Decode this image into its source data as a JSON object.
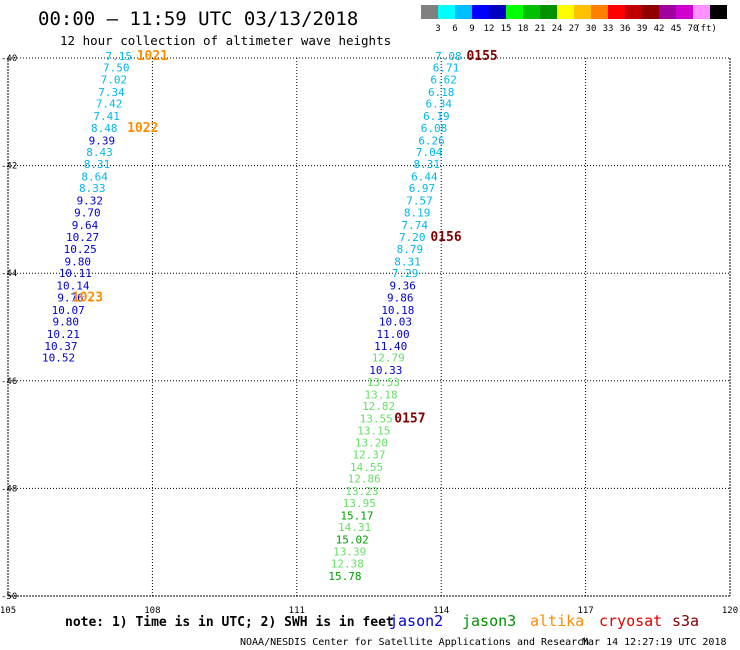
{
  "header": {
    "title": "00:00 – 11:59 UTC 03/13/2018",
    "subtitle": "12 hour collection of altimeter wave heights"
  },
  "colorbar": {
    "colors": [
      "#808080",
      "#00ffff",
      "#00bfff",
      "#0000ff",
      "#0000c0",
      "#00ff00",
      "#00c000",
      "#009000",
      "#ffff00",
      "#ffc000",
      "#ff8000",
      "#ff0000",
      "#c00000",
      "#900000",
      "#a000a0",
      "#d000d0",
      "#ff90ff",
      "#000000"
    ],
    "labels": [
      "3",
      "6",
      "9",
      "12",
      "15",
      "18",
      "21",
      "24",
      "27",
      "30",
      "33",
      "36",
      "39",
      "42",
      "45",
      "70"
    ],
    "unit": "(ft)"
  },
  "axes": {
    "lon_ticks": [
      "105",
      "108",
      "111",
      "114",
      "117",
      "120"
    ],
    "lat_ticks": [
      "-40",
      "-42",
      "-44",
      "-46",
      "-48",
      "-50"
    ]
  },
  "tracks": [
    {
      "points": [
        {
          "v": "7.15",
          "lon": 107.3,
          "lat": -39.96
        },
        {
          "v": "7.50",
          "lon": 107.25,
          "lat": -40.18
        },
        {
          "v": "7.02",
          "lon": 107.2,
          "lat": -40.4
        },
        {
          "v": "7.34",
          "lon": 107.15,
          "lat": -40.63
        },
        {
          "v": "7.42",
          "lon": 107.1,
          "lat": -40.85
        },
        {
          "v": "7.41",
          "lon": 107.05,
          "lat": -41.08
        },
        {
          "v": "8.48",
          "lon": 107.0,
          "lat": -41.3
        },
        {
          "v": "9.39",
          "lon": 106.95,
          "lat": -41.53
        },
        {
          "v": "8.43",
          "lon": 106.9,
          "lat": -41.75
        },
        {
          "v": "8.31",
          "lon": 106.85,
          "lat": -41.97
        },
        {
          "v": "8.64",
          "lon": 106.8,
          "lat": -42.2
        },
        {
          "v": "8.33",
          "lon": 106.75,
          "lat": -42.42
        },
        {
          "v": "9.32",
          "lon": 106.7,
          "lat": -42.65
        },
        {
          "v": "9.70",
          "lon": 106.65,
          "lat": -42.87
        },
        {
          "v": "9.64",
          "lon": 106.6,
          "lat": -43.1
        },
        {
          "v": "10.27",
          "lon": 106.55,
          "lat": -43.33
        },
        {
          "v": "10.25",
          "lon": 106.5,
          "lat": -43.55
        },
        {
          "v": "9.80",
          "lon": 106.45,
          "lat": -43.78
        },
        {
          "v": "10.11",
          "lon": 106.4,
          "lat": -44.0
        },
        {
          "v": "10.14",
          "lon": 106.35,
          "lat": -44.23
        },
        {
          "v": "9.76",
          "lon": 106.3,
          "lat": -44.45
        },
        {
          "v": "10.07",
          "lon": 106.25,
          "lat": -44.68
        },
        {
          "v": "9.80",
          "lon": 106.2,
          "lat": -44.9
        },
        {
          "v": "10.21",
          "lon": 106.15,
          "lat": -45.13
        },
        {
          "v": "10.37",
          "lon": 106.1,
          "lat": -45.35
        },
        {
          "v": "10.52",
          "lon": 106.05,
          "lat": -45.57
        }
      ],
      "times": [
        {
          "t": "1021",
          "lon": 108.0,
          "lat": -39.96
        },
        {
          "t": "1022",
          "lon": 107.8,
          "lat": -41.3
        },
        {
          "t": "1023",
          "lon": 106.65,
          "lat": -44.45
        }
      ]
    },
    {
      "points": [
        {
          "v": "7.08",
          "lon": 114.15,
          "lat": -39.96
        },
        {
          "v": "6.71",
          "lon": 114.1,
          "lat": -40.18
        },
        {
          "v": "6.62",
          "lon": 114.05,
          "lat": -40.4
        },
        {
          "v": "6.18",
          "lon": 114.0,
          "lat": -40.63
        },
        {
          "v": "6.34",
          "lon": 113.95,
          "lat": -40.85
        },
        {
          "v": "6.19",
          "lon": 113.9,
          "lat": -41.08
        },
        {
          "v": "6.08",
          "lon": 113.85,
          "lat": -41.3
        },
        {
          "v": "6.26",
          "lon": 113.8,
          "lat": -41.53
        },
        {
          "v": "7.04",
          "lon": 113.75,
          "lat": -41.75
        },
        {
          "v": "8.31",
          "lon": 113.7,
          "lat": -41.97
        },
        {
          "v": "6.44",
          "lon": 113.65,
          "lat": -42.2
        },
        {
          "v": "6.97",
          "lon": 113.6,
          "lat": -42.42
        },
        {
          "v": "7.57",
          "lon": 113.55,
          "lat": -42.65
        },
        {
          "v": "8.19",
          "lon": 113.5,
          "lat": -42.87
        },
        {
          "v": "7.74",
          "lon": 113.45,
          "lat": -43.1
        },
        {
          "v": "7.20",
          "lon": 113.4,
          "lat": -43.33
        },
        {
          "v": "8.79",
          "lon": 113.35,
          "lat": -43.55
        },
        {
          "v": "8.31",
          "lon": 113.3,
          "lat": -43.78
        },
        {
          "v": "7.29",
          "lon": 113.25,
          "lat": -44.0
        },
        {
          "v": "9.36",
          "lon": 113.2,
          "lat": -44.23
        },
        {
          "v": "9.86",
          "lon": 113.15,
          "lat": -44.45
        },
        {
          "v": "10.18",
          "lon": 113.1,
          "lat": -44.68
        },
        {
          "v": "10.03",
          "lon": 113.05,
          "lat": -44.9
        },
        {
          "v": "11.00",
          "lon": 113.0,
          "lat": -45.13
        },
        {
          "v": "11.40",
          "lon": 112.95,
          "lat": -45.35
        },
        {
          "v": "12.79",
          "lon": 112.9,
          "lat": -45.57
        },
        {
          "v": "10.33",
          "lon": 112.85,
          "lat": -45.8
        },
        {
          "v": "13.53",
          "lon": 112.8,
          "lat": -46.02
        },
        {
          "v": "13.18",
          "lon": 112.75,
          "lat": -46.25
        },
        {
          "v": "12.82",
          "lon": 112.7,
          "lat": -46.47
        },
        {
          "v": "13.55",
          "lon": 112.65,
          "lat": -46.7
        },
        {
          "v": "13.15",
          "lon": 112.6,
          "lat": -46.92
        },
        {
          "v": "13.20",
          "lon": 112.55,
          "lat": -47.15
        },
        {
          "v": "12.37",
          "lon": 112.5,
          "lat": -47.37
        },
        {
          "v": "14.55",
          "lon": 112.45,
          "lat": -47.6
        },
        {
          "v": "12.86",
          "lon": 112.4,
          "lat": -47.82
        },
        {
          "v": "13.23",
          "lon": 112.35,
          "lat": -48.05
        },
        {
          "v": "13.95",
          "lon": 112.3,
          "lat": -48.27
        },
        {
          "v": "15.17",
          "lon": 112.25,
          "lat": -48.5
        },
        {
          "v": "14.31",
          "lon": 112.2,
          "lat": -48.72
        },
        {
          "v": "15.02",
          "lon": 112.15,
          "lat": -48.95
        },
        {
          "v": "13.39",
          "lon": 112.1,
          "lat": -49.17
        },
        {
          "v": "12.38",
          "lon": 112.05,
          "lat": -49.4
        },
        {
          "v": "15.78",
          "lon": 112.0,
          "lat": -49.63
        }
      ],
      "times": [
        {
          "t": "0155",
          "lon": 114.85,
          "lat": -39.96
        },
        {
          "t": "0156",
          "lon": 114.1,
          "lat": -43.33
        },
        {
          "t": "0157",
          "lon": 113.35,
          "lat": -46.7
        }
      ]
    }
  ],
  "time_color_track1": "#ff8c00",
  "time_color_track2": "#800000",
  "footer": {
    "note": "note: 1) Time is in UTC; 2) SWH is in feet",
    "satellites": [
      {
        "name": "jason2",
        "color": "#0000e0"
      },
      {
        "name": "jason3",
        "color": "#009000"
      },
      {
        "name": "altika",
        "color": "#ff8c00"
      },
      {
        "name": "cryosat",
        "color": "#e00000"
      },
      {
        "name": "s3a",
        "color": "#800000"
      }
    ],
    "credit": "NOAA/NESDIS Center for Satellite Applications and Research",
    "timestamp": "Mar 14 12:27:19 UTC 2018"
  }
}
